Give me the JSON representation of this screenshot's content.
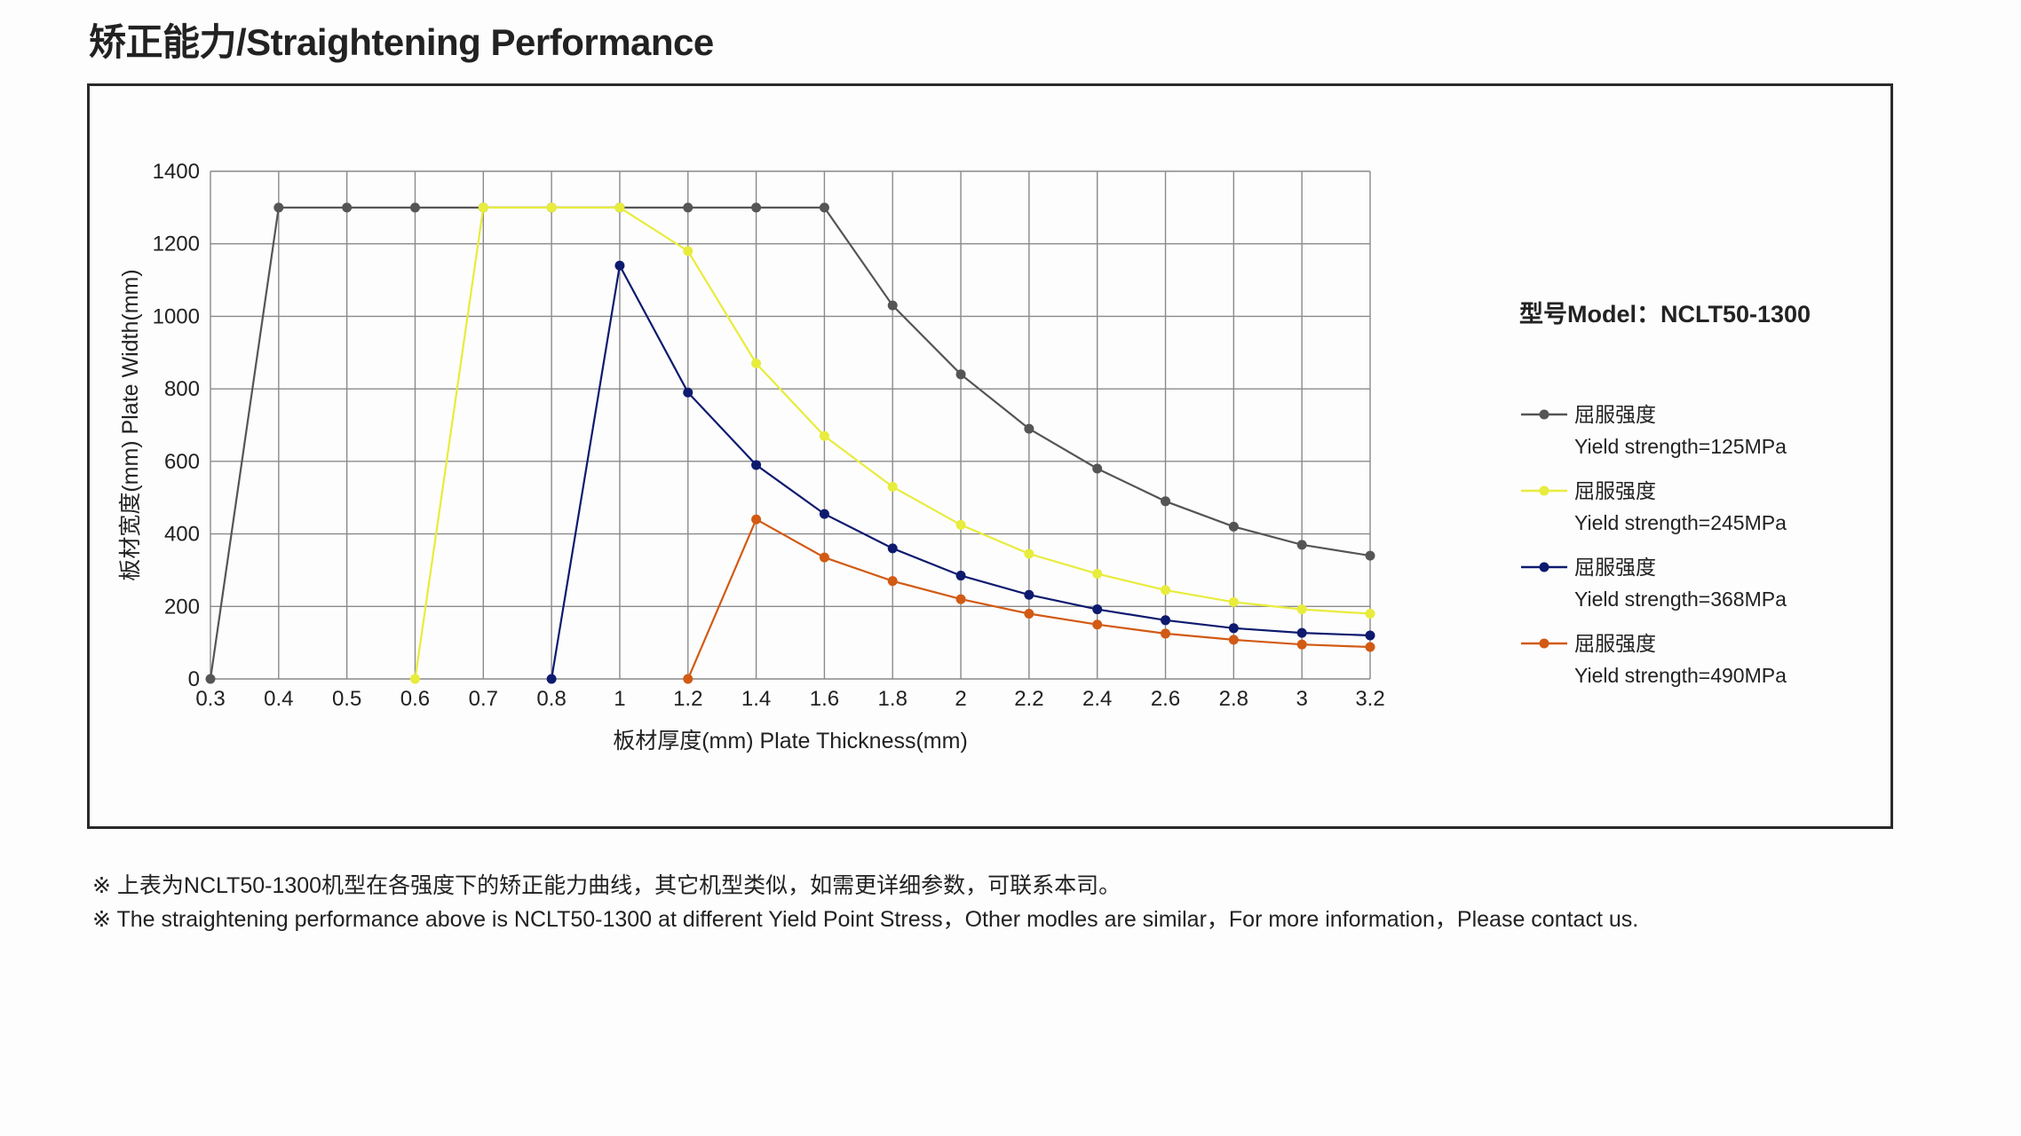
{
  "title": "矫正能力/Straightening Performance",
  "chart_data": {
    "type": "line",
    "title": "矫正能力/Straightening Performance",
    "xlabel": "板材厚度(mm) Plate Thickness(mm)",
    "ylabel": "板材宽度(mm) Plate Width(mm)",
    "categories": [
      "0.3",
      "0.4",
      "0.5",
      "0.6",
      "0.7",
      "0.8",
      "1",
      "1.2",
      "1.4",
      "1.6",
      "1.8",
      "2",
      "2.2",
      "2.4",
      "2.6",
      "2.8",
      "3",
      "3.2"
    ],
    "ylim": [
      0,
      1400
    ],
    "yticks": [
      0,
      200,
      400,
      600,
      800,
      1000,
      1200,
      1400
    ],
    "ytick_labels": [
      "0",
      "200",
      "400",
      "600",
      "800",
      "1000",
      "1200",
      "1400"
    ],
    "grid": true,
    "legend_position": "right",
    "series": [
      {
        "name_cn": "屈服强度",
        "name_en": "Yield strength=125MPa",
        "color": "#555555",
        "values": [
          0,
          1300,
          1300,
          1300,
          1300,
          1300,
          1300,
          1300,
          1300,
          1300,
          1030,
          840,
          690,
          580,
          490,
          420,
          370,
          340
        ]
      },
      {
        "name_cn": "屈服强度",
        "name_en": "Yield strength=245MPa",
        "color": "#e8ec3c",
        "values": [
          null,
          null,
          null,
          0,
          1300,
          1300,
          1300,
          1180,
          870,
          670,
          530,
          425,
          345,
          290,
          245,
          212,
          192,
          180
        ]
      },
      {
        "name_cn": "屈服强度",
        "name_en": "Yield strength=368MPa",
        "color": "#0d1a6e",
        "values": [
          null,
          null,
          null,
          null,
          null,
          0,
          1140,
          790,
          590,
          455,
          360,
          285,
          232,
          192,
          162,
          140,
          127,
          120
        ]
      },
      {
        "name_cn": "屈服强度",
        "name_en": "Yield strength=490MPa",
        "color": "#d25a14",
        "values": [
          null,
          null,
          null,
          null,
          null,
          null,
          null,
          0,
          440,
          335,
          270,
          220,
          180,
          150,
          125,
          108,
          95,
          88
        ]
      }
    ]
  },
  "model": {
    "label": "型号Model：NCLT50-1300"
  },
  "notes": {
    "line1": "※ 上表为NCLT50-1300机型在各强度下的矫正能力曲线，其它机型类似，如需更详细参数，可联系本司。",
    "line2": "※ The straightening performance above is NCLT50-1300 at different Yield Point Stress，Other modles are similar，For more information，Please contact us."
  }
}
